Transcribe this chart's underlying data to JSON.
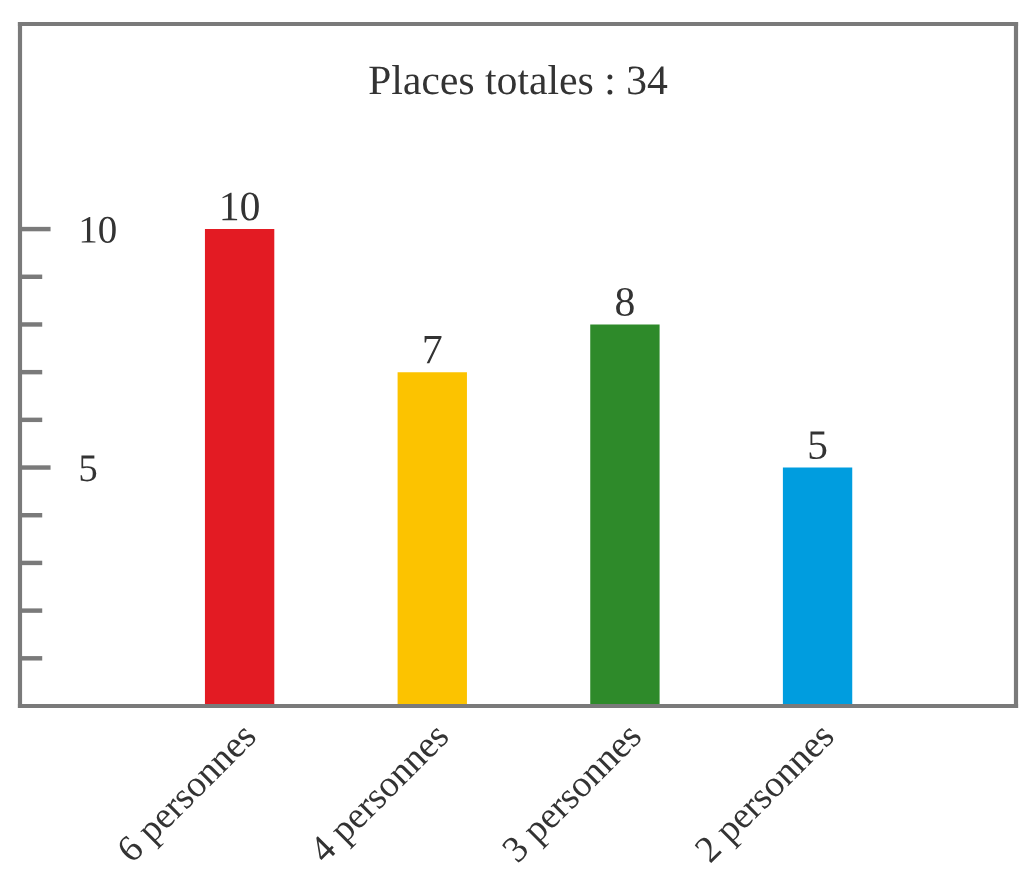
{
  "chart_data": {
    "type": "bar",
    "title": "Places totales : 34",
    "categories": [
      "6 personnes",
      "4 personnes",
      "3 personnes",
      "2 personnes"
    ],
    "values": [
      10,
      7,
      8,
      5
    ],
    "colors": [
      "#e31b23",
      "#fcc300",
      "#2e8a2a",
      "#009ddf"
    ],
    "ylim": [
      0,
      14.3
    ],
    "yticks": [
      {
        "value": 1,
        "label": null
      },
      {
        "value": 2,
        "label": null
      },
      {
        "value": 3,
        "label": null
      },
      {
        "value": 4,
        "label": null
      },
      5,
      {
        "value": 6,
        "label": null
      },
      {
        "value": 7,
        "label": null
      },
      {
        "value": 8,
        "label": null
      },
      {
        "value": 9,
        "label": null
      },
      10
    ],
    "data_labels": true
  }
}
